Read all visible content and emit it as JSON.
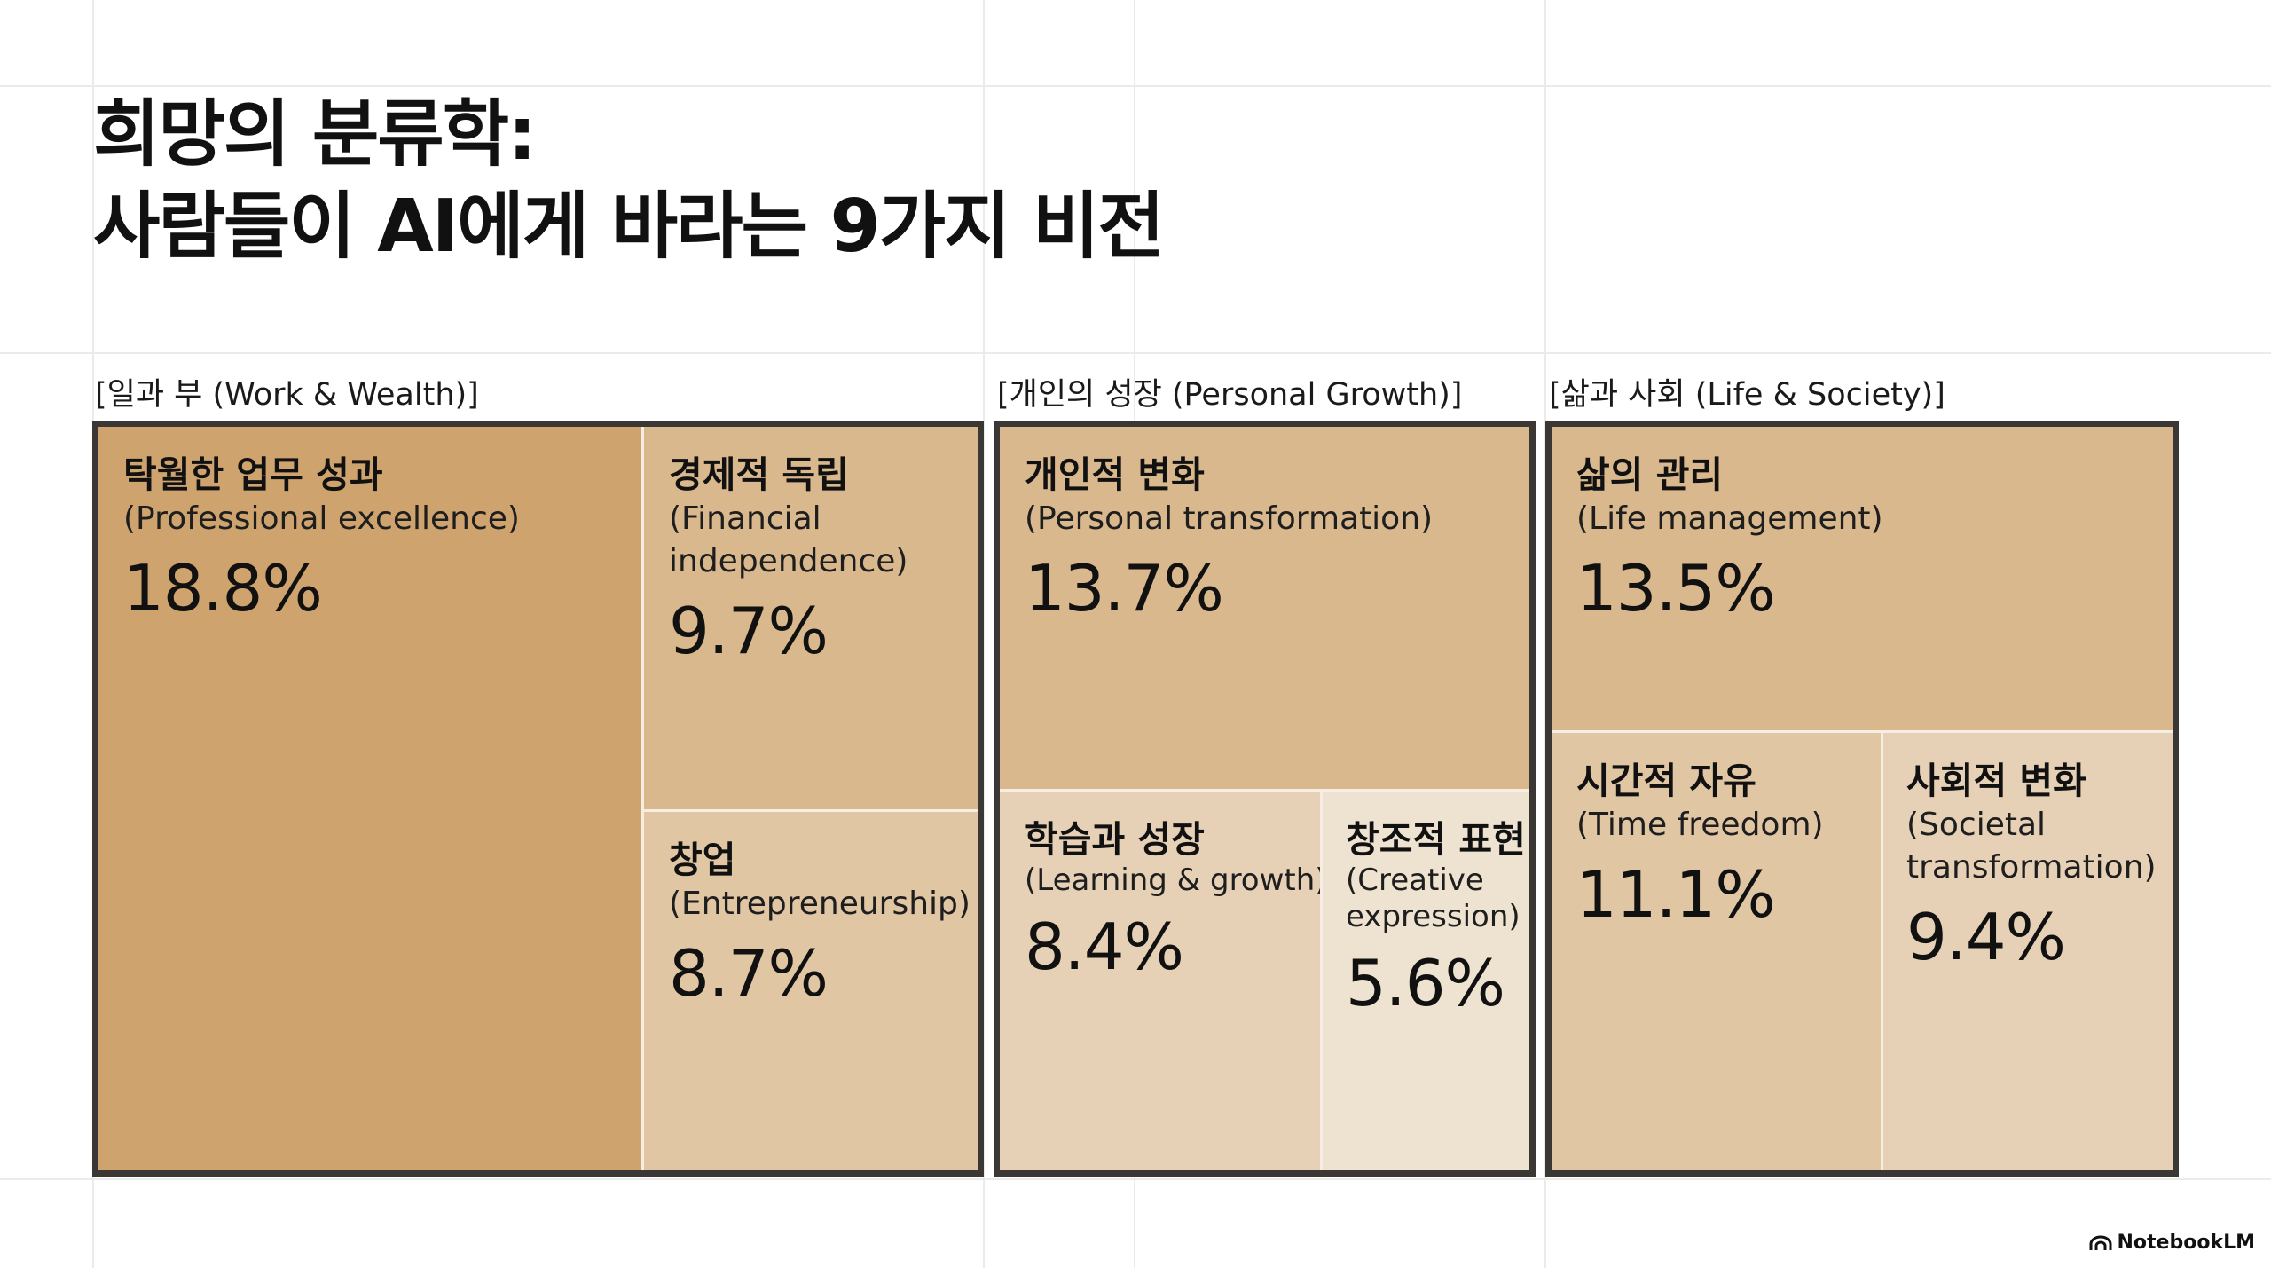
{
  "title": {
    "line1": "희망의 분류학:",
    "line2": "사람들이 AI에게 바라는 9가지 비전"
  },
  "brand": "NotebookLM",
  "colors": {
    "tile_darkest": "#cfa36e",
    "tile_dark": "#dab88d",
    "tile_mid": "#e1c6a4",
    "tile_light": "#e6d1b6",
    "tile_lightest": "#eee2d0",
    "border": "#3a3734"
  },
  "chart_data": {
    "type": "treemap",
    "unit": "%",
    "groups": [
      {
        "label": "[일과 부 (Work & Wealth)]",
        "items": [
          {
            "ko": "탁월한 업무 성과",
            "en": "(Professional excellence)",
            "value": 18.8,
            "display": "18.8%",
            "color": "#cfa36e"
          },
          {
            "ko": "경제적 독립",
            "en1": "(Financial",
            "en2": "independence)",
            "value": 9.7,
            "display": "9.7%",
            "color": "#dab88d"
          },
          {
            "ko": "창업",
            "en": "(Entrepreneurship)",
            "value": 8.7,
            "display": "8.7%",
            "color": "#e1c6a4"
          }
        ]
      },
      {
        "label": "[개인의 성장 (Personal Growth)]",
        "items": [
          {
            "ko": "개인적 변화",
            "en": "(Personal transformation)",
            "value": 13.7,
            "display": "13.7%",
            "color": "#dab88d"
          },
          {
            "ko": "학습과 성장",
            "en": "(Learning & growth)",
            "value": 8.4,
            "display": "8.4%",
            "color": "#e6d1b6"
          },
          {
            "ko": "창조적 표현",
            "en1": "(Creative",
            "en2": "expression)",
            "value": 5.6,
            "display": "5.6%",
            "color": "#eee2d0"
          }
        ]
      },
      {
        "label": "[삶과 사회 (Life & Society)]",
        "items": [
          {
            "ko": "삶의 관리",
            "en": "(Life management)",
            "value": 13.5,
            "display": "13.5%",
            "color": "#dab88d"
          },
          {
            "ko": "시간적 자유",
            "en": "(Time freedom)",
            "value": 11.1,
            "display": "11.1%",
            "color": "#e1c6a4"
          },
          {
            "ko": "사회적 변화",
            "en1": "(Societal",
            "en2": "transformation)",
            "value": 9.4,
            "display": "9.4%",
            "color": "#e6d1b6"
          }
        ]
      }
    ]
  }
}
